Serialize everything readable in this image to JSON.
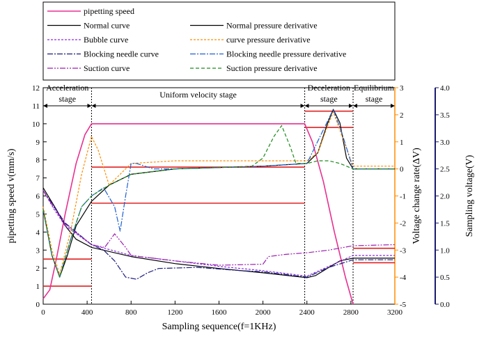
{
  "chart_data": {
    "type": "line",
    "xlabel": "Sampling sequence(f=1KHz)",
    "ylabel_left": "pipetting speed v(mm/s)",
    "ylabel_right1": "Voltage change rate(ΔV)",
    "ylabel_right2": "Sampling voltage(V)",
    "xlim": [
      0,
      3200
    ],
    "ylim_left": [
      0,
      12
    ],
    "ylim_right1": [
      -5,
      3
    ],
    "ylim_right2": [
      0.0,
      4.0
    ],
    "x_ticks": [
      "0",
      "400",
      "800",
      "1200",
      "1600",
      "2000",
      "2400",
      "2800",
      "3200"
    ],
    "y_left_ticks": [
      "0",
      "1",
      "2",
      "3",
      "4",
      "5",
      "6",
      "7",
      "8",
      "9",
      "10",
      "11",
      "12"
    ],
    "y_right1_ticks": [
      "-5",
      "-4",
      "-3",
      "-2",
      "-1",
      "0",
      "1",
      "2",
      "3"
    ],
    "y_right2_ticks": [
      "0.0",
      "0.5",
      "1.0",
      "1.5",
      "2.0",
      "2.5",
      "3.0",
      "3.5",
      "4.0"
    ],
    "colors": {
      "left_axis": "#000000",
      "right1_axis": "#ff8c00",
      "right2_axis": "#1a1a6e"
    },
    "stages": [
      {
        "label1": "Acceleration",
        "label2": "stage"
      },
      {
        "label1": "Uniform velocity stage",
        "label2": ""
      },
      {
        "label1": "Deceleration",
        "label2": "stage"
      },
      {
        "label1": "Equilibrium",
        "label2": "stage"
      }
    ],
    "stage_boundaries": [
      440,
      2380,
      2820
    ],
    "legend": [
      {
        "name": "pipetting speed",
        "color": "#e83090",
        "dash": "",
        "width": 1.6
      },
      {
        "name": "Normal curve",
        "color": "#000000",
        "dash": "",
        "width": 1.2
      },
      {
        "name": "Normal pressure derivative",
        "color": "#000000",
        "dash": "",
        "width": 1.2
      },
      {
        "name": "Bubble curve",
        "color": "#8a2be2",
        "dash": "3,2",
        "width": 1.2
      },
      {
        "name": "curve pressure derivative",
        "color": "#ff8c00",
        "dash": "3,2",
        "width": 1.2
      },
      {
        "name": "Blocking needle curve",
        "color": "#1a1a80",
        "dash": "8,2,2,2",
        "width": 1.2
      },
      {
        "name": "Blocking needle pressure derivative",
        "color": "#1e5fd0",
        "dash": "8,2,2,2",
        "width": 1.2
      },
      {
        "name": "Suction curve",
        "color": "#9b1fb0",
        "dash": "8,2,2,2,2,2",
        "width": 1.2
      },
      {
        "name": "Suction pressure derivative",
        "color": "#1a8a1a",
        "dash": "5,3",
        "width": 1.2
      }
    ],
    "thresholds_left": [
      {
        "x": [
          0,
          440
        ],
        "y": 2.5
      },
      {
        "x": [
          0,
          440
        ],
        "y": 1.0
      },
      {
        "x": [
          440,
          2380
        ],
        "y": 7.6
      },
      {
        "x": [
          440,
          2380
        ],
        "y": 5.6
      },
      {
        "x": [
          2380,
          2820
        ],
        "y": 10.7
      },
      {
        "x": [
          2380,
          2820
        ],
        "y": 9.8
      },
      {
        "x": [
          2820,
          3200
        ],
        "y": 3.1
      },
      {
        "x": [
          2820,
          3200
        ],
        "y": 2.3
      }
    ],
    "series": [
      {
        "name": "pipetting speed",
        "axis": "left",
        "points": [
          [
            0,
            0.3
          ],
          [
            60,
            0.8
          ],
          [
            120,
            2.5
          ],
          [
            200,
            5.0
          ],
          [
            300,
            7.8
          ],
          [
            380,
            9.4
          ],
          [
            440,
            10.0
          ],
          [
            2380,
            10.0
          ],
          [
            2450,
            9.0
          ],
          [
            2550,
            6.8
          ],
          [
            2650,
            4.0
          ],
          [
            2750,
            1.5
          ],
          [
            2820,
            0.0
          ]
        ]
      },
      {
        "name": "Normal curve",
        "axis": "right2",
        "points": [
          [
            0,
            2.15
          ],
          [
            60,
            1.95
          ],
          [
            120,
            1.75
          ],
          [
            200,
            1.45
          ],
          [
            300,
            1.2
          ],
          [
            440,
            1.05
          ],
          [
            800,
            0.88
          ],
          [
            1200,
            0.75
          ],
          [
            1600,
            0.66
          ],
          [
            2000,
            0.58
          ],
          [
            2400,
            0.49
          ],
          [
            2480,
            0.53
          ],
          [
            2600,
            0.68
          ],
          [
            2700,
            0.8
          ],
          [
            2820,
            0.85
          ],
          [
            3200,
            0.85
          ]
        ]
      },
      {
        "name": "Normal pressure derivative",
        "axis": "right1",
        "points": [
          [
            0,
            -1.5
          ],
          [
            80,
            -3.2
          ],
          [
            150,
            -4.0
          ],
          [
            220,
            -3.2
          ],
          [
            300,
            -2.1
          ],
          [
            440,
            -1.2
          ],
          [
            600,
            -0.6
          ],
          [
            800,
            -0.2
          ],
          [
            1200,
            0.0
          ],
          [
            1600,
            0.05
          ],
          [
            2000,
            0.1
          ],
          [
            2400,
            0.2
          ],
          [
            2500,
            0.6
          ],
          [
            2580,
            1.6
          ],
          [
            2640,
            2.2
          ],
          [
            2700,
            1.7
          ],
          [
            2760,
            0.4
          ],
          [
            2820,
            0.0
          ],
          [
            3200,
            0.0
          ]
        ]
      },
      {
        "name": "Bubble curve",
        "axis": "right2",
        "points": [
          [
            0,
            2.1
          ],
          [
            100,
            1.75
          ],
          [
            200,
            1.45
          ],
          [
            440,
            1.1
          ],
          [
            800,
            0.9
          ],
          [
            1200,
            0.8
          ],
          [
            1600,
            0.7
          ],
          [
            2000,
            0.62
          ],
          [
            2400,
            0.52
          ],
          [
            2600,
            0.7
          ],
          [
            2820,
            0.9
          ],
          [
            3200,
            0.9
          ]
        ]
      },
      {
        "name": "curve pressure derivative",
        "axis": "right1",
        "points": [
          [
            0,
            -1.4
          ],
          [
            80,
            -3.0
          ],
          [
            150,
            -3.9
          ],
          [
            250,
            -2.3
          ],
          [
            350,
            -0.2
          ],
          [
            440,
            1.2
          ],
          [
            500,
            0.7
          ],
          [
            600,
            -0.6
          ],
          [
            700,
            -0.2
          ],
          [
            800,
            0.2
          ],
          [
            1200,
            0.3
          ],
          [
            1600,
            0.3
          ],
          [
            2000,
            0.3
          ],
          [
            2400,
            0.3
          ],
          [
            2500,
            0.6
          ],
          [
            2580,
            1.5
          ],
          [
            2640,
            2.1
          ],
          [
            2720,
            1.2
          ],
          [
            2820,
            0.1
          ],
          [
            3200,
            0.1
          ]
        ]
      },
      {
        "name": "Blocking needle curve",
        "axis": "right2",
        "points": [
          [
            0,
            2.1
          ],
          [
            100,
            1.8
          ],
          [
            200,
            1.5
          ],
          [
            440,
            1.1
          ],
          [
            550,
            1.0
          ],
          [
            650,
            0.8
          ],
          [
            750,
            0.5
          ],
          [
            850,
            0.46
          ],
          [
            950,
            0.58
          ],
          [
            1050,
            0.66
          ],
          [
            1400,
            0.68
          ],
          [
            1800,
            0.62
          ],
          [
            2000,
            0.6
          ],
          [
            2400,
            0.5
          ],
          [
            2600,
            0.68
          ],
          [
            2820,
            0.82
          ],
          [
            3200,
            0.82
          ]
        ]
      },
      {
        "name": "Blocking needle pressure derivative",
        "axis": "right1",
        "points": [
          [
            0,
            -1.5
          ],
          [
            80,
            -3.2
          ],
          [
            150,
            -4.0
          ],
          [
            250,
            -2.6
          ],
          [
            350,
            -1.4
          ],
          [
            440,
            -1.0
          ],
          [
            550,
            -0.7
          ],
          [
            650,
            -1.4
          ],
          [
            700,
            -2.3
          ],
          [
            750,
            -1.0
          ],
          [
            800,
            0.2
          ],
          [
            850,
            0.2
          ],
          [
            1000,
            0.0
          ],
          [
            1200,
            0.0
          ],
          [
            1600,
            0.05
          ],
          [
            2000,
            0.1
          ],
          [
            2400,
            0.2
          ],
          [
            2580,
            1.7
          ],
          [
            2640,
            2.2
          ],
          [
            2720,
            1.3
          ],
          [
            2820,
            0.0
          ],
          [
            3200,
            0.0
          ]
        ]
      },
      {
        "name": "Suction curve",
        "axis": "right2",
        "points": [
          [
            0,
            2.1
          ],
          [
            100,
            1.78
          ],
          [
            200,
            1.48
          ],
          [
            440,
            1.1
          ],
          [
            560,
            1.05
          ],
          [
            650,
            1.3
          ],
          [
            750,
            1.05
          ],
          [
            800,
            0.9
          ],
          [
            1200,
            0.8
          ],
          [
            1600,
            0.72
          ],
          [
            2000,
            0.74
          ],
          [
            2050,
            0.88
          ],
          [
            2200,
            0.92
          ],
          [
            2400,
            0.95
          ],
          [
            2600,
            1.0
          ],
          [
            2820,
            1.08
          ],
          [
            3200,
            1.1
          ]
        ]
      },
      {
        "name": "Suction pressure derivative",
        "axis": "right1",
        "points": [
          [
            0,
            -1.5
          ],
          [
            80,
            -3.2
          ],
          [
            150,
            -4.0
          ],
          [
            250,
            -2.6
          ],
          [
            350,
            -1.4
          ],
          [
            440,
            -1.0
          ],
          [
            600,
            -0.6
          ],
          [
            800,
            -0.2
          ],
          [
            1200,
            0.0
          ],
          [
            1600,
            0.05
          ],
          [
            1900,
            0.1
          ],
          [
            2000,
            0.4
          ],
          [
            2100,
            1.2
          ],
          [
            2170,
            1.6
          ],
          [
            2250,
            0.8
          ],
          [
            2300,
            0.2
          ],
          [
            2400,
            0.2
          ],
          [
            2500,
            0.3
          ],
          [
            2600,
            0.3
          ],
          [
            2700,
            0.2
          ],
          [
            2820,
            0.0
          ],
          [
            3200,
            0.0
          ]
        ]
      }
    ]
  }
}
